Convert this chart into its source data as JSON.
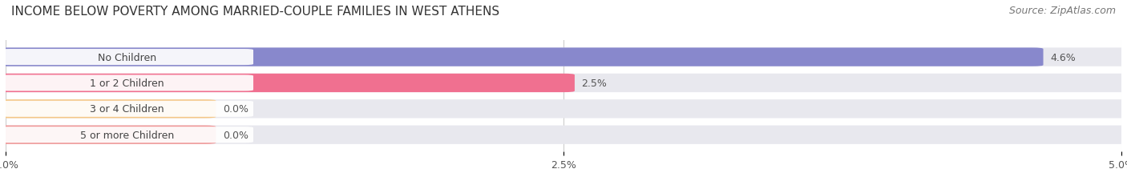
{
  "title": "INCOME BELOW POVERTY AMONG MARRIED-COUPLE FAMILIES IN WEST ATHENS",
  "source": "Source: ZipAtlas.com",
  "categories": [
    "No Children",
    "1 or 2 Children",
    "3 or 4 Children",
    "5 or more Children"
  ],
  "values": [
    4.6,
    2.5,
    0.0,
    0.0
  ],
  "bar_colors": [
    "#8888cc",
    "#f07090",
    "#f5c888",
    "#f09898"
  ],
  "bar_bg_color": "#e8e8ee",
  "label_bg_color": "#ffffff",
  "xlim": [
    0,
    5.0
  ],
  "xticks": [
    0.0,
    2.5,
    5.0
  ],
  "xticklabels": [
    "0.0%",
    "2.5%",
    "5.0%"
  ],
  "value_labels": [
    "4.6%",
    "2.5%",
    "0.0%",
    "0.0%"
  ],
  "title_fontsize": 11,
  "source_fontsize": 9,
  "label_fontsize": 9,
  "tick_fontsize": 9,
  "bar_height": 0.62,
  "background_color": "#ffffff",
  "grid_color": "#cccccc",
  "text_color": "#444444",
  "value_label_color": "#555555"
}
